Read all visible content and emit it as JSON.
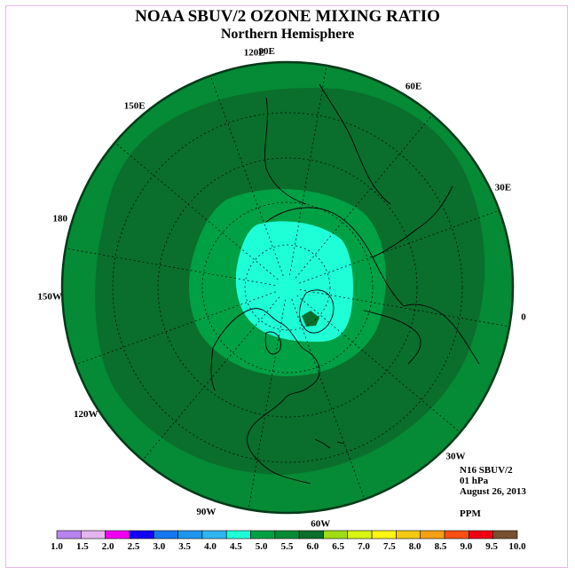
{
  "title": "NOAA SBUV/2 OZONE MIXING RATIO",
  "subtitle": "Northern Hemisphere",
  "longitude_labels": [
    "90E",
    "60E",
    "30E",
    "0",
    "30W",
    "60W",
    "90W",
    "120W",
    "150W",
    "180",
    "150E",
    "120E"
  ],
  "info": {
    "satellite": "N16 SBUV/2",
    "level": "01 hPa",
    "date": "August 26, 2013",
    "units": "PPM"
  },
  "colorbar": {
    "ticks": [
      "1.0",
      "1.5",
      "2.0",
      "2.5",
      "3.0",
      "3.5",
      "4.0",
      "4.5",
      "5.0",
      "5.5",
      "6.0",
      "6.5",
      "7.0",
      "7.5",
      "8.0",
      "8.5",
      "9.0",
      "9.5",
      "10.0"
    ],
    "colors": [
      "#b784f0",
      "#e4b4f0",
      "#f000f0",
      "#1400f0",
      "#1478f0",
      "#1e96f0",
      "#30b4f0",
      "#1effd8",
      "#00a044",
      "#058a36",
      "#0a6e2c",
      "#a0dc14",
      "#d8f514",
      "#fff514",
      "#f5c814",
      "#f5a014",
      "#f55014",
      "#f00014",
      "#785030"
    ]
  },
  "map": {
    "outer_color": "#058a36",
    "band_color": "#0a6e2c",
    "inner_color": "#00a044",
    "polar_color": "#1effd8",
    "spot_color": "#0a6e2c"
  }
}
